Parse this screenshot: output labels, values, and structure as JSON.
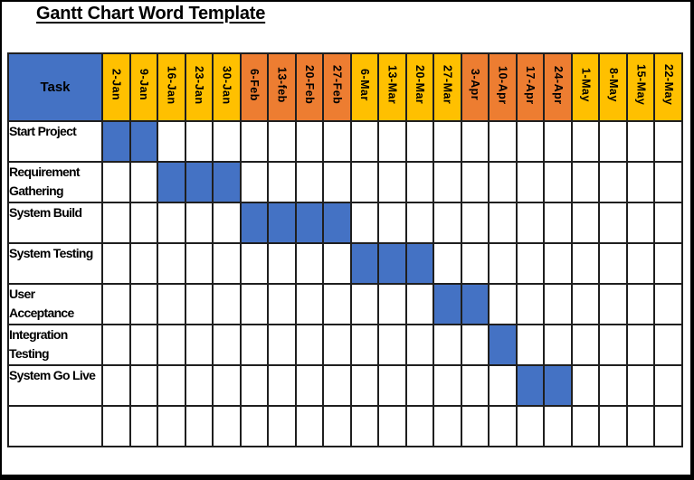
{
  "page": {
    "title": "Gantt Chart Word Template"
  },
  "colors": {
    "bar_blue": "#4472C4",
    "month_yellow": "#FFC000",
    "month_orange": "#ED7D31",
    "grid_line": "#1f1f1f",
    "text": "#000000",
    "background": "#FFFFFF"
  },
  "table": {
    "task_header": "Task",
    "columns": [
      {
        "label": "2-Jan",
        "color": "#FFC000"
      },
      {
        "label": "9-Jan",
        "color": "#FFC000"
      },
      {
        "label": "16-Jan",
        "color": "#FFC000"
      },
      {
        "label": "23-Jan",
        "color": "#FFC000"
      },
      {
        "label": "30-Jan",
        "color": "#FFC000"
      },
      {
        "label": "6-Feb",
        "color": "#ED7D31"
      },
      {
        "label": "13-feb",
        "color": "#ED7D31"
      },
      {
        "label": "20-Feb",
        "color": "#ED7D31"
      },
      {
        "label": "27-Feb",
        "color": "#ED7D31"
      },
      {
        "label": "6-Mar",
        "color": "#FFC000"
      },
      {
        "label": "13-Mar",
        "color": "#FFC000"
      },
      {
        "label": "20-Mar",
        "color": "#FFC000"
      },
      {
        "label": "27-Mar",
        "color": "#FFC000"
      },
      {
        "label": "3-Apr",
        "color": "#ED7D31"
      },
      {
        "label": "10-Apr",
        "color": "#ED7D31"
      },
      {
        "label": "17-Apr",
        "color": "#ED7D31"
      },
      {
        "label": "24-Apr",
        "color": "#ED7D31"
      },
      {
        "label": "1-May",
        "color": "#FFC000"
      },
      {
        "label": "8-May",
        "color": "#FFC000"
      },
      {
        "label": "15-May",
        "color": "#FFC000"
      },
      {
        "label": "22-May",
        "color": "#FFC000"
      }
    ],
    "rows": [
      {
        "task": "Start Project",
        "bar_start": 1,
        "bar_end": 2
      },
      {
        "task": "Requirement Gathering",
        "bar_start": 3,
        "bar_end": 5
      },
      {
        "task": "System Build",
        "bar_start": 6,
        "bar_end": 9
      },
      {
        "task": "System Testing",
        "bar_start": 10,
        "bar_end": 12
      },
      {
        "task": "User Acceptance",
        "bar_start": 13,
        "bar_end": 14
      },
      {
        "task": "Integration Testing",
        "bar_start": 15,
        "bar_end": 15
      },
      {
        "task": "System Go Live",
        "bar_start": 16,
        "bar_end": 17
      },
      {
        "task": "",
        "bar_start": 0,
        "bar_end": 0
      }
    ]
  },
  "chart_data": {
    "type": "bar",
    "subtype": "gantt",
    "title": "Gantt Chart Word Template",
    "x_categories": [
      "2-Jan",
      "9-Jan",
      "16-Jan",
      "23-Jan",
      "30-Jan",
      "6-Feb",
      "13-feb",
      "20-Feb",
      "27-Feb",
      "6-Mar",
      "13-Mar",
      "20-Mar",
      "27-Mar",
      "3-Apr",
      "10-Apr",
      "17-Apr",
      "24-Apr",
      "1-May",
      "8-May",
      "15-May",
      "22-May"
    ],
    "tasks": [
      {
        "name": "Start Project",
        "start": "2-Jan",
        "end": "9-Jan",
        "weeks": 2
      },
      {
        "name": "Requirement Gathering",
        "start": "16-Jan",
        "end": "30-Jan",
        "weeks": 3
      },
      {
        "name": "System Build",
        "start": "6-Feb",
        "end": "27-Feb",
        "weeks": 4
      },
      {
        "name": "System Testing",
        "start": "6-Mar",
        "end": "20-Mar",
        "weeks": 3
      },
      {
        "name": "User Acceptance",
        "start": "27-Mar",
        "end": "3-Apr",
        "weeks": 2
      },
      {
        "name": "Integration Testing",
        "start": "10-Apr",
        "end": "10-Apr",
        "weeks": 1
      },
      {
        "name": "System Go Live",
        "start": "17-Apr",
        "end": "24-Apr",
        "weeks": 2
      }
    ],
    "bar_color": "#4472C4",
    "legend": "none",
    "grid": true
  }
}
